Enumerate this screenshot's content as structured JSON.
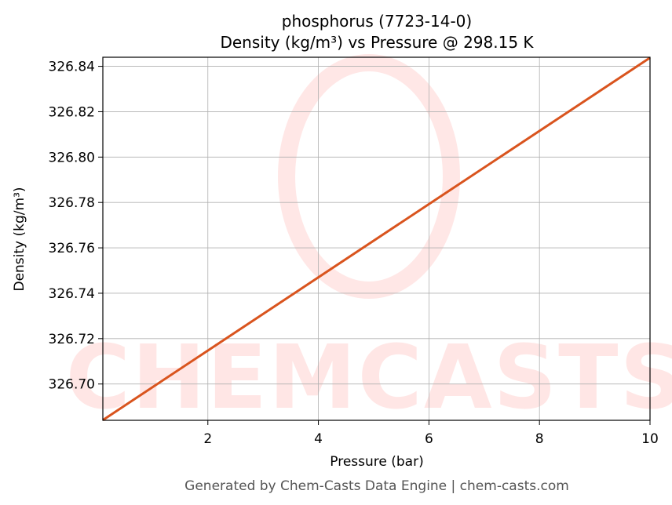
{
  "chart_data": {
    "type": "line",
    "title": "phosphorus (7723-14-0)",
    "subtitle": "Density (kg/m³) vs Pressure @ 298.15 K",
    "x_label": "Pressure (bar)",
    "y_label": "Density (kg/m³)",
    "footer": "Generated by Chem-Casts Data Engine | chem-casts.com",
    "watermark": "CHEMCASTS",
    "x": [
      0.1,
      10
    ],
    "series": [
      {
        "name": "Density",
        "color": "#d9541e",
        "values": [
          326.6841,
          326.8438
        ]
      }
    ],
    "xlim": [
      0.1,
      10
    ],
    "ylim": [
      326.684,
      326.844
    ],
    "xticks": [
      2,
      4,
      6,
      8,
      10
    ],
    "yticks": [
      {
        "value": 326.7,
        "label": "326.70"
      },
      326.72,
      326.74,
      326.76,
      326.78,
      {
        "value": 326.8,
        "label": "326.80"
      },
      326.82,
      326.84
    ],
    "grid": true
  }
}
